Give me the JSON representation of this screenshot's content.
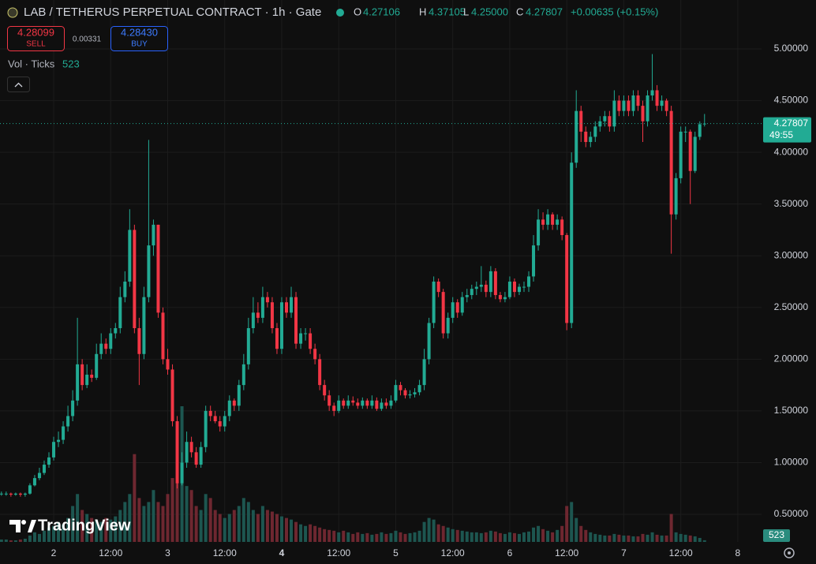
{
  "header": {
    "title": "LAB / TETHERUS PERPETUAL CONTRACT · 1h · Gate",
    "legend": [
      {
        "key": "O",
        "value": "4.27106"
      },
      {
        "key": "H",
        "value": "4.37105"
      },
      {
        "key": "L",
        "value": "4.25000"
      },
      {
        "key": "C",
        "value": "4.27807"
      }
    ],
    "change": "+0.00635 (+0.15%)"
  },
  "trade": {
    "sell_price": "4.28099",
    "sell": "SELL",
    "spread": "0.00331",
    "buy_price": "4.28430",
    "buy": "BUY"
  },
  "indicator": {
    "name": "Vol · Ticks",
    "value": "523"
  },
  "logo": "TradingView",
  "chart_data": {
    "type": "candlestick",
    "price_label": "4.27807",
    "countdown": "49:55",
    "volume_label": "523",
    "up_color": "#22ab94",
    "down_color": "#f23645",
    "up_volume_color": "#1d5650",
    "down_volume_color": "#6e2730",
    "grid": true,
    "ylim": [
      0.233,
      5.473
    ],
    "yticks": [
      {
        "value": 5,
        "label": "5.00000"
      },
      {
        "value": 4.5,
        "label": "4.50000"
      },
      {
        "value": 4,
        "label": "4.00000"
      },
      {
        "value": 3.5,
        "label": "3.50000"
      },
      {
        "value": 3,
        "label": "3.00000"
      },
      {
        "value": 2.5,
        "label": "2.50000"
      },
      {
        "value": 2,
        "label": "2.00000"
      },
      {
        "value": 1.5,
        "label": "1.50000"
      },
      {
        "value": 1,
        "label": "1.00000"
      },
      {
        "value": 0.5,
        "label": "0.50000"
      }
    ],
    "xlim": [
      -0.3,
      160
    ],
    "xticks": [
      {
        "value": 11,
        "label": "2"
      },
      {
        "value": 23,
        "label": "12:00"
      },
      {
        "value": 35,
        "label": "3"
      },
      {
        "value": 47,
        "label": "12:00"
      },
      {
        "value": 59,
        "label": "4"
      },
      {
        "value": 71,
        "label": "12:00"
      },
      {
        "value": 83,
        "label": "5"
      },
      {
        "value": 95,
        "label": "12:00"
      },
      {
        "value": 107,
        "label": "6"
      },
      {
        "value": 119,
        "label": "12:00"
      },
      {
        "value": 131,
        "label": "7"
      },
      {
        "value": 143,
        "label": "12:00"
      },
      {
        "value": 155,
        "label": "8"
      }
    ],
    "open": [
      0.7,
      0.7,
      0.7,
      0.69,
      0.7,
      0.69,
      0.7,
      0.78,
      0.85,
      0.9,
      0.98,
      1.05,
      1.2,
      1.22,
      1.35,
      1.45,
      1.6,
      1.95,
      1.75,
      1.85,
      1.82,
      2.05,
      2.15,
      2.1,
      2.25,
      2.3,
      2.6,
      2.75,
      3.25,
      2.3,
      2.05,
      2.6,
      3.1,
      3.3,
      2.45,
      2.0,
      1.9,
      1.4,
      0.8,
      1.0,
      1.2,
      1.1,
      0.98,
      1.15,
      1.5,
      1.45,
      1.4,
      1.35,
      1.45,
      1.6,
      1.55,
      1.75,
      1.95,
      2.3,
      2.45,
      2.4,
      2.6,
      2.55,
      2.3,
      2.1,
      2.55,
      2.45,
      2.6,
      2.15,
      2.25,
      2.25,
      2.1,
      2.0,
      1.75,
      1.65,
      1.55,
      1.5,
      1.6,
      1.55,
      1.6,
      1.58,
      1.55,
      1.6,
      1.55,
      1.6,
      1.52,
      1.58,
      1.55,
      1.6,
      1.75,
      1.7,
      1.65,
      1.66,
      1.68,
      1.75,
      2.0,
      2.35,
      2.75,
      2.65,
      2.25,
      2.4,
      2.55,
      2.45,
      2.6,
      2.62,
      2.68,
      2.7,
      2.72,
      2.65,
      2.85,
      2.62,
      2.58,
      2.6,
      2.75,
      2.65,
      2.7,
      2.7,
      2.8,
      3.1,
      3.35,
      3.3,
      3.4,
      3.3,
      3.35,
      3.2,
      2.35,
      3.9,
      4.4,
      4.2,
      4.1,
      4.15,
      4.25,
      4.3,
      4.35,
      4.25,
      4.5,
      4.4,
      4.5,
      4.4,
      4.55,
      4.45,
      4.3,
      4.55,
      4.6,
      4.45,
      4.5,
      4.4,
      3.4,
      3.75,
      4.2,
      4.2,
      3.82,
      4.15,
      4.27106
    ],
    "high": [
      0.72,
      0.72,
      0.71,
      0.71,
      0.71,
      0.71,
      0.8,
      0.88,
      0.95,
      1.02,
      1.1,
      1.25,
      1.3,
      1.4,
      1.55,
      1.7,
      2.4,
      2.0,
      1.95,
      1.9,
      2.15,
      2.25,
      2.2,
      2.3,
      2.35,
      2.7,
      2.85,
      3.45,
      3.3,
      2.4,
      2.7,
      4.12,
      3.35,
      3.3,
      2.5,
      2.1,
      1.95,
      1.45,
      1.1,
      1.3,
      1.25,
      1.15,
      1.2,
      1.55,
      1.55,
      1.5,
      1.45,
      1.5,
      1.65,
      1.62,
      1.8,
      2.05,
      2.4,
      2.6,
      2.55,
      2.7,
      2.65,
      2.6,
      2.35,
      2.6,
      2.6,
      2.7,
      2.65,
      2.3,
      2.3,
      2.3,
      2.15,
      2.05,
      1.8,
      1.7,
      1.58,
      1.65,
      1.62,
      1.65,
      1.64,
      1.62,
      1.63,
      1.62,
      1.65,
      1.63,
      1.62,
      1.62,
      1.65,
      1.8,
      1.78,
      1.72,
      1.7,
      1.72,
      1.8,
      2.1,
      2.4,
      2.8,
      2.78,
      2.68,
      2.45,
      2.6,
      2.58,
      2.65,
      2.68,
      2.72,
      2.75,
      2.9,
      2.76,
      2.9,
      2.88,
      2.65,
      2.65,
      2.8,
      2.78,
      2.73,
      2.75,
      2.85,
      3.2,
      3.45,
      3.42,
      3.45,
      3.42,
      3.4,
      3.38,
      3.22,
      4.0,
      4.6,
      4.45,
      4.25,
      4.2,
      4.3,
      4.35,
      4.4,
      4.4,
      4.6,
      4.55,
      4.55,
      4.55,
      4.6,
      4.6,
      4.5,
      4.6,
      4.95,
      4.65,
      4.55,
      4.52,
      4.45,
      3.8,
      4.25,
      4.25,
      4.22,
      4.2,
      4.3,
      4.37105
    ],
    "low": [
      0.68,
      0.68,
      0.67,
      0.68,
      0.67,
      0.67,
      0.69,
      0.77,
      0.83,
      0.88,
      0.95,
      1.02,
      1.15,
      1.18,
      1.3,
      1.4,
      1.55,
      1.7,
      1.72,
      1.78,
      1.8,
      2.0,
      2.05,
      2.05,
      2.2,
      2.25,
      2.55,
      2.7,
      2.25,
      1.75,
      2.0,
      2.55,
      3.0,
      2.4,
      1.95,
      1.85,
      1.35,
      0.75,
      0.78,
      0.95,
      1.05,
      0.95,
      0.95,
      1.1,
      1.4,
      1.38,
      1.3,
      1.3,
      1.4,
      1.5,
      1.5,
      1.7,
      1.9,
      2.25,
      2.35,
      2.35,
      2.5,
      2.25,
      2.05,
      2.05,
      2.4,
      2.4,
      2.1,
      2.1,
      2.18,
      2.05,
      1.95,
      1.7,
      1.6,
      1.5,
      1.45,
      1.48,
      1.52,
      1.52,
      1.55,
      1.52,
      1.52,
      1.52,
      1.52,
      1.5,
      1.5,
      1.52,
      1.52,
      1.58,
      1.65,
      1.62,
      1.62,
      1.63,
      1.65,
      1.7,
      1.95,
      2.3,
      2.6,
      2.2,
      2.2,
      2.35,
      2.4,
      2.42,
      2.55,
      2.58,
      2.62,
      2.65,
      2.6,
      2.6,
      2.58,
      2.55,
      2.55,
      2.58,
      2.6,
      2.62,
      2.65,
      2.65,
      2.75,
      3.05,
      3.25,
      3.25,
      3.25,
      3.25,
      3.15,
      2.28,
      2.3,
      3.85,
      4.1,
      4.05,
      4.05,
      4.1,
      4.2,
      4.25,
      4.2,
      4.2,
      4.35,
      4.35,
      4.35,
      4.35,
      4.4,
      4.1,
      4.25,
      4.5,
      4.4,
      4.4,
      4.35,
      3.02,
      3.35,
      3.7,
      4.1,
      3.5,
      3.8,
      4.12,
      4.25
    ],
    "close": [
      0.7,
      0.7,
      0.69,
      0.7,
      0.69,
      0.7,
      0.78,
      0.85,
      0.9,
      0.98,
      1.05,
      1.2,
      1.22,
      1.35,
      1.45,
      1.6,
      1.95,
      1.75,
      1.85,
      1.82,
      2.05,
      2.15,
      2.1,
      2.25,
      2.3,
      2.6,
      2.75,
      3.25,
      2.3,
      2.05,
      2.6,
      3.1,
      3.3,
      2.45,
      2.0,
      1.9,
      1.4,
      0.8,
      1.0,
      1.2,
      1.1,
      0.98,
      1.15,
      1.5,
      1.45,
      1.4,
      1.35,
      1.45,
      1.6,
      1.55,
      1.75,
      1.95,
      2.3,
      2.45,
      2.4,
      2.6,
      2.55,
      2.3,
      2.1,
      2.55,
      2.45,
      2.6,
      2.15,
      2.25,
      2.25,
      2.1,
      2.0,
      1.75,
      1.65,
      1.55,
      1.5,
      1.6,
      1.55,
      1.6,
      1.58,
      1.55,
      1.6,
      1.55,
      1.6,
      1.52,
      1.58,
      1.55,
      1.6,
      1.75,
      1.7,
      1.65,
      1.66,
      1.68,
      1.75,
      2.0,
      2.35,
      2.75,
      2.65,
      2.25,
      2.4,
      2.55,
      2.45,
      2.6,
      2.62,
      2.68,
      2.7,
      2.72,
      2.65,
      2.85,
      2.62,
      2.58,
      2.6,
      2.75,
      2.65,
      2.7,
      2.7,
      2.8,
      3.1,
      3.35,
      3.3,
      3.4,
      3.3,
      3.35,
      3.2,
      2.35,
      3.9,
      4.4,
      4.2,
      4.1,
      4.15,
      4.25,
      4.3,
      4.35,
      4.25,
      4.5,
      4.4,
      4.5,
      4.4,
      4.55,
      4.45,
      4.3,
      4.55,
      4.6,
      4.45,
      4.5,
      4.4,
      3.4,
      3.75,
      4.2,
      4.2,
      3.82,
      4.15,
      4.27172,
      4.27807
    ],
    "volume": [
      750,
      750,
      500,
      500,
      750,
      1000,
      2000,
      3000,
      2500,
      3500,
      4500,
      5000,
      6250,
      5500,
      7500,
      11250,
      15000,
      10000,
      8750,
      7500,
      7000,
      6250,
      7500,
      7000,
      8000,
      10000,
      12500,
      15000,
      27500,
      13750,
      11250,
      12500,
      16250,
      12500,
      11250,
      15000,
      20000,
      18750,
      42500,
      17500,
      16250,
      11250,
      10000,
      15000,
      13750,
      10000,
      8750,
      7500,
      8750,
      10000,
      11250,
      13750,
      12500,
      10000,
      8750,
      11250,
      10000,
      9500,
      8750,
      8000,
      7500,
      7000,
      6250,
      5500,
      5000,
      5500,
      5000,
      4500,
      4000,
      3750,
      3500,
      3000,
      3500,
      3000,
      2500,
      3000,
      2500,
      2750,
      2250,
      2500,
      3000,
      2500,
      2750,
      3500,
      3000,
      2500,
      2750,
      3000,
      3500,
      6250,
      7500,
      7000,
      5500,
      5000,
      4500,
      4000,
      3750,
      3500,
      3250,
      3000,
      3000,
      2750,
      3000,
      3500,
      3250,
      2750,
      2500,
      3000,
      2750,
      2500,
      3000,
      3250,
      4500,
      5000,
      4000,
      3500,
      3000,
      3750,
      5000,
      11250,
      12500,
      7500,
      5000,
      3750,
      3000,
      2500,
      2250,
      2000,
      2000,
      2500,
      2250,
      2000,
      2000,
      1750,
      1750,
      2500,
      2250,
      3000,
      2250,
      2000,
      2000,
      8750,
      3000,
      2500,
      2250,
      2000,
      1750,
      1250,
      523
    ]
  }
}
